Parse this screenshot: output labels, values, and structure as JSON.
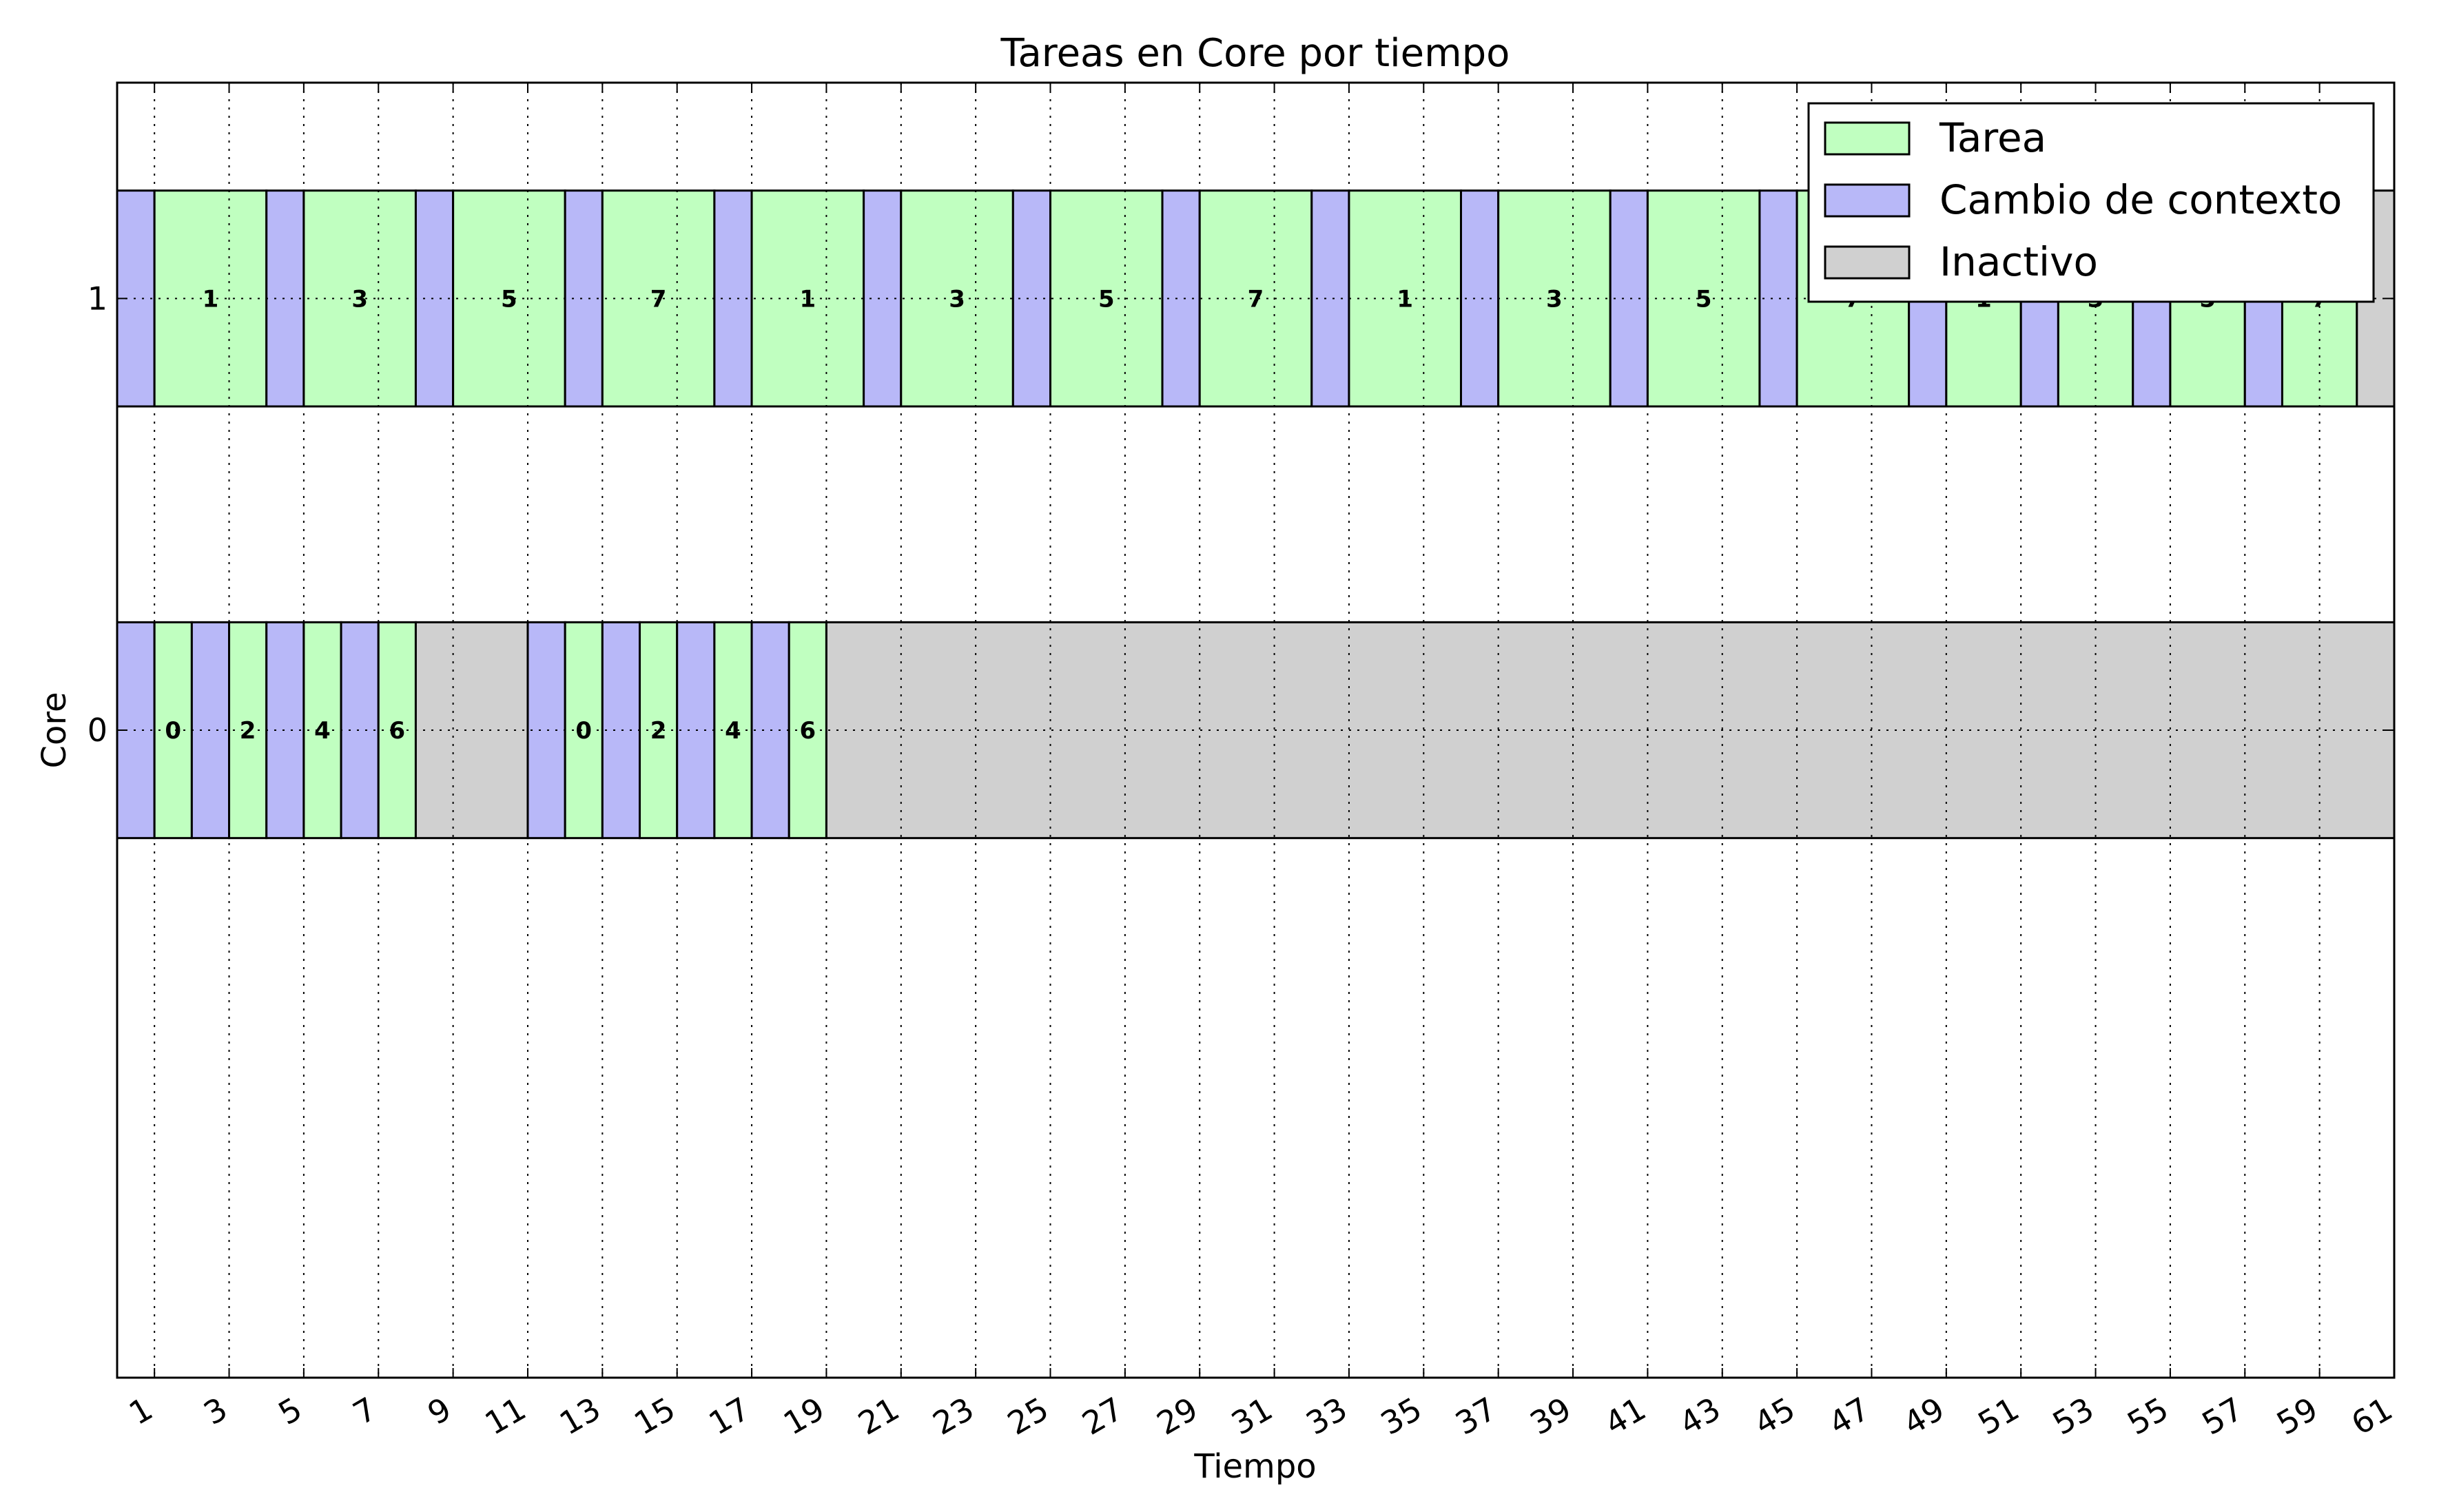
{
  "chart_data": {
    "type": "gantt",
    "title": "Tareas en Core por tiempo",
    "xlabel": "Tiempo",
    "ylabel": "Core",
    "xlim": [
      0,
      61
    ],
    "ylim": [
      -1.5,
      1.5
    ],
    "xticks": [
      1,
      3,
      5,
      7,
      9,
      11,
      13,
      15,
      17,
      19,
      21,
      23,
      25,
      27,
      29,
      31,
      33,
      35,
      37,
      39,
      41,
      43,
      45,
      47,
      49,
      51,
      53,
      55,
      57,
      59,
      61
    ],
    "yticks": [
      0,
      1
    ],
    "ytick_labels": [
      "0",
      "1"
    ],
    "grid": true,
    "legend_position": "upper-right",
    "colors": {
      "task": "#c0ffc0",
      "switch": "#b8b8f8",
      "idle": "#d0d0d0"
    },
    "legend": [
      {
        "kind": "task",
        "label": "Tarea"
      },
      {
        "kind": "switch",
        "label": "Cambio de contexto"
      },
      {
        "kind": "idle",
        "label": "Inactivo"
      }
    ],
    "cores": [
      {
        "core": "0",
        "segments": [
          {
            "start": 0,
            "end": 1,
            "kind": "switch",
            "label": ""
          },
          {
            "start": 1,
            "end": 2,
            "kind": "task",
            "label": "0"
          },
          {
            "start": 2,
            "end": 3,
            "kind": "switch",
            "label": ""
          },
          {
            "start": 3,
            "end": 4,
            "kind": "task",
            "label": "2"
          },
          {
            "start": 4,
            "end": 5,
            "kind": "switch",
            "label": ""
          },
          {
            "start": 5,
            "end": 6,
            "kind": "task",
            "label": "4"
          },
          {
            "start": 6,
            "end": 7,
            "kind": "switch",
            "label": ""
          },
          {
            "start": 7,
            "end": 8,
            "kind": "task",
            "label": "6"
          },
          {
            "start": 8,
            "end": 11,
            "kind": "idle",
            "label": ""
          },
          {
            "start": 11,
            "end": 12,
            "kind": "switch",
            "label": ""
          },
          {
            "start": 12,
            "end": 13,
            "kind": "task",
            "label": "0"
          },
          {
            "start": 13,
            "end": 14,
            "kind": "switch",
            "label": ""
          },
          {
            "start": 14,
            "end": 15,
            "kind": "task",
            "label": "2"
          },
          {
            "start": 15,
            "end": 16,
            "kind": "switch",
            "label": ""
          },
          {
            "start": 16,
            "end": 17,
            "kind": "task",
            "label": "4"
          },
          {
            "start": 17,
            "end": 18,
            "kind": "switch",
            "label": ""
          },
          {
            "start": 18,
            "end": 19,
            "kind": "task",
            "label": "6"
          },
          {
            "start": 19,
            "end": 61,
            "kind": "idle",
            "label": ""
          }
        ]
      },
      {
        "core": "1",
        "segments": [
          {
            "start": 0,
            "end": 1,
            "kind": "switch",
            "label": ""
          },
          {
            "start": 1,
            "end": 4,
            "kind": "task",
            "label": "1"
          },
          {
            "start": 4,
            "end": 5,
            "kind": "switch",
            "label": ""
          },
          {
            "start": 5,
            "end": 8,
            "kind": "task",
            "label": "3"
          },
          {
            "start": 8,
            "end": 9,
            "kind": "switch",
            "label": ""
          },
          {
            "start": 9,
            "end": 12,
            "kind": "task",
            "label": "5"
          },
          {
            "start": 12,
            "end": 13,
            "kind": "switch",
            "label": ""
          },
          {
            "start": 13,
            "end": 16,
            "kind": "task",
            "label": "7"
          },
          {
            "start": 16,
            "end": 17,
            "kind": "switch",
            "label": ""
          },
          {
            "start": 17,
            "end": 20,
            "kind": "task",
            "label": "1"
          },
          {
            "start": 20,
            "end": 21,
            "kind": "switch",
            "label": ""
          },
          {
            "start": 21,
            "end": 24,
            "kind": "task",
            "label": "3"
          },
          {
            "start": 24,
            "end": 25,
            "kind": "switch",
            "label": ""
          },
          {
            "start": 25,
            "end": 28,
            "kind": "task",
            "label": "5"
          },
          {
            "start": 28,
            "end": 29,
            "kind": "switch",
            "label": ""
          },
          {
            "start": 29,
            "end": 32,
            "kind": "task",
            "label": "7"
          },
          {
            "start": 32,
            "end": 33,
            "kind": "switch",
            "label": ""
          },
          {
            "start": 33,
            "end": 36,
            "kind": "task",
            "label": "1"
          },
          {
            "start": 36,
            "end": 37,
            "kind": "switch",
            "label": ""
          },
          {
            "start": 37,
            "end": 40,
            "kind": "task",
            "label": "3"
          },
          {
            "start": 40,
            "end": 41,
            "kind": "switch",
            "label": ""
          },
          {
            "start": 41,
            "end": 44,
            "kind": "task",
            "label": "5"
          },
          {
            "start": 44,
            "end": 45,
            "kind": "switch",
            "label": ""
          },
          {
            "start": 45,
            "end": 48,
            "kind": "task",
            "label": "7"
          },
          {
            "start": 48,
            "end": 49,
            "kind": "switch",
            "label": ""
          },
          {
            "start": 49,
            "end": 51,
            "kind": "task",
            "label": "1"
          },
          {
            "start": 51,
            "end": 52,
            "kind": "switch",
            "label": ""
          },
          {
            "start": 52,
            "end": 54,
            "kind": "task",
            "label": "3"
          },
          {
            "start": 54,
            "end": 55,
            "kind": "switch",
            "label": ""
          },
          {
            "start": 55,
            "end": 57,
            "kind": "task",
            "label": "5"
          },
          {
            "start": 57,
            "end": 58,
            "kind": "switch",
            "label": ""
          },
          {
            "start": 58,
            "end": 60,
            "kind": "task",
            "label": "7"
          },
          {
            "start": 60,
            "end": 61,
            "kind": "idle",
            "label": ""
          }
        ]
      }
    ]
  }
}
